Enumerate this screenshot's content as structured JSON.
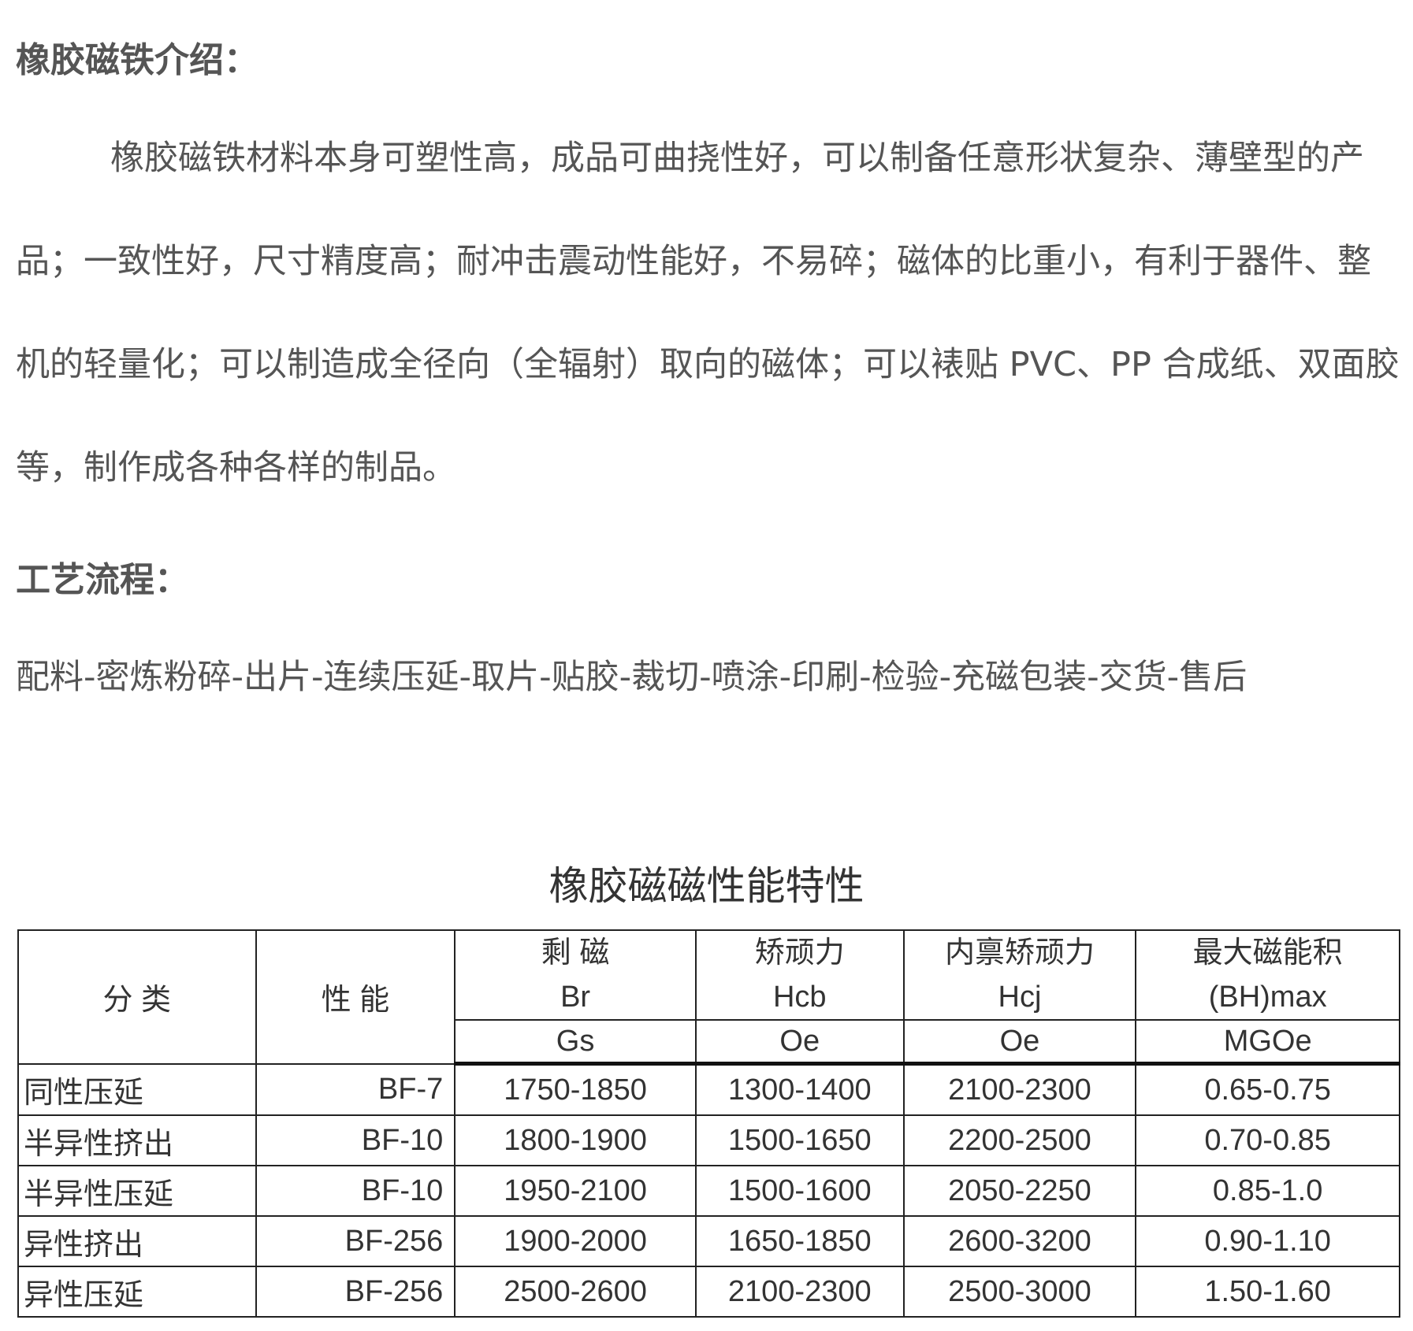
{
  "intro": {
    "heading": "橡胶磁铁介绍：",
    "paragraph": "橡胶磁铁材料本身可塑性高，成品可曲挠性好，可以制备任意形状复杂、薄壁型的产品；一致性好，尺寸精度高；耐冲击震动性能好，不易碎；磁体的比重小，有利于器件、整机的轻量化；可以制造成全径向（全辐射）取向的磁体；可以裱贴 PVC、PP 合成纸、双面胶等，制作成各种各样的制品。"
  },
  "process": {
    "heading": "工艺流程：",
    "text": "配料-密炼粉碎-出片-连续压延-取片-贴胶-裁切-喷涂-印刷-检验-充磁包装-交货-售后"
  },
  "table": {
    "title": "橡胶磁磁性能特性",
    "headers": {
      "category": "分 类",
      "grade": "性 能",
      "br": {
        "name": "剩 磁",
        "symbol": "Br",
        "unit": "Gs"
      },
      "hcb": {
        "name": "矫顽力",
        "symbol": "Hcb",
        "unit": "Oe"
      },
      "hcj": {
        "name": "内禀矫顽力",
        "symbol": "Hcj",
        "unit": "Oe"
      },
      "bh": {
        "name": "最大磁能积",
        "symbol": "(BH)max",
        "unit": "MGOe"
      }
    },
    "rows": [
      {
        "category": "同性压延",
        "grade": "BF-7",
        "br": "1750-1850",
        "hcb": "1300-1400",
        "hcj": "2100-2300",
        "bh": "0.65-0.75"
      },
      {
        "category": "半异性挤出",
        "grade": "BF-10",
        "br": "1800-1900",
        "hcb": "1500-1650",
        "hcj": "2200-2500",
        "bh": "0.70-0.85"
      },
      {
        "category": "半异性压延",
        "grade": "BF-10",
        "br": "1950-2100",
        "hcb": "1500-1600",
        "hcj": "2050-2250",
        "bh": "0.85-1.0"
      },
      {
        "category": "异性挤出",
        "grade": "BF-256",
        "br": "1900-2000",
        "hcb": "1650-1850",
        "hcj": "2600-3200",
        "bh": "0.90-1.10"
      },
      {
        "category": "异性压延",
        "grade": "BF-256",
        "br": "2500-2600",
        "hcb": "2100-2300",
        "hcj": "2500-3000",
        "bh": "1.50-1.60"
      }
    ]
  }
}
